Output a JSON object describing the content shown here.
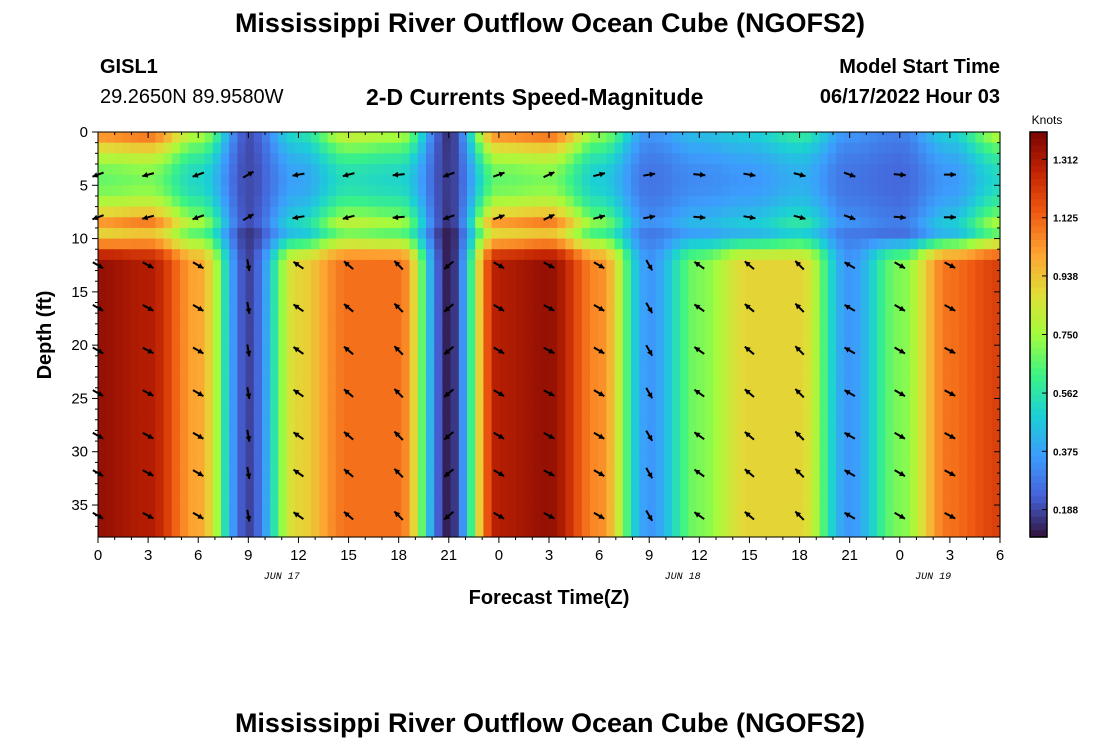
{
  "header": {
    "title": "Mississippi River Outflow Ocean Cube (NGOFS2)",
    "station": "GISL1",
    "coords": "29.2650N  89.9580W",
    "subtitle": "2-D Currents Speed-Magnitude",
    "model_start_label": "Model Start Time",
    "model_start_value": "06/17/2022 Hour 03"
  },
  "footer": {
    "title": "Mississippi River Outflow Ocean Cube (NGOFS2)"
  },
  "chart_data": {
    "type": "heatmap",
    "title": "2-D Currents Speed-Magnitude",
    "xlabel": "Forecast Time(Z)",
    "ylabel": "Depth (ft)",
    "x_ticks": [
      "0",
      "3",
      "6",
      "9",
      "12",
      "15",
      "18",
      "21",
      "0",
      "3",
      "6",
      "9",
      "12",
      "15",
      "18",
      "21",
      "0",
      "3",
      "6"
    ],
    "y_ticks": [
      "0",
      "5",
      "10",
      "15",
      "20",
      "25",
      "30",
      "35"
    ],
    "ylim": [
      0,
      38
    ],
    "y_inverted": true,
    "dates": [
      {
        "label": "JUN 17",
        "hour": 11
      },
      {
        "label": "JUN 18",
        "hour": 35
      },
      {
        "label": "JUN 19",
        "hour": 50
      }
    ],
    "colorbar": {
      "label": "Knots",
      "ticks": [
        "1.312",
        "1.125",
        "0.938",
        "0.750",
        "0.562",
        "0.375",
        "0.188"
      ],
      "tick_values": [
        1.312,
        1.125,
        0.938,
        0.75,
        0.562,
        0.375,
        0.188
      ],
      "range": [
        0.1,
        1.4
      ],
      "colormap": "turbo"
    },
    "column_hours": [
      0,
      3,
      6,
      9,
      12,
      15,
      18,
      21,
      24,
      27,
      30,
      33,
      36,
      39,
      42,
      45,
      48,
      51,
      54
    ],
    "peak_speed_upper_knots": [
      1.1,
      1.15,
      0.8,
      0.2,
      0.55,
      0.85,
      0.8,
      0.15,
      1.1,
      1.15,
      0.75,
      0.35,
      0.45,
      0.5,
      0.6,
      0.35,
      0.3,
      0.5,
      0.8
    ],
    "peak_speed_lower_knots": [
      1.35,
      1.3,
      1.0,
      0.18,
      0.9,
      1.1,
      1.1,
      0.12,
      1.3,
      1.35,
      1.05,
      0.35,
      0.7,
      0.9,
      0.9,
      0.35,
      0.7,
      1.1,
      1.2
    ],
    "arrow_depths_ft": [
      4,
      8,
      12.5,
      16.5,
      20.5,
      24.5,
      28.5,
      32,
      36
    ],
    "arrow_hours": [
      0,
      3,
      6,
      9,
      12,
      15,
      18,
      21,
      24,
      27,
      30,
      33,
      36,
      39,
      42,
      45,
      48,
      51
    ],
    "arrow_direction_deg": {
      "surface": [
        200,
        195,
        200,
        30,
        190,
        195,
        185,
        200,
        20,
        25,
        15,
        10,
        355,
        350,
        345,
        340,
        355,
        0
      ],
      "lower": [
        -30,
        -28,
        -30,
        -80,
        145,
        140,
        135,
        -140,
        -30,
        -28,
        -30,
        -60,
        145,
        140,
        135,
        150,
        -30,
        -28
      ]
    }
  }
}
